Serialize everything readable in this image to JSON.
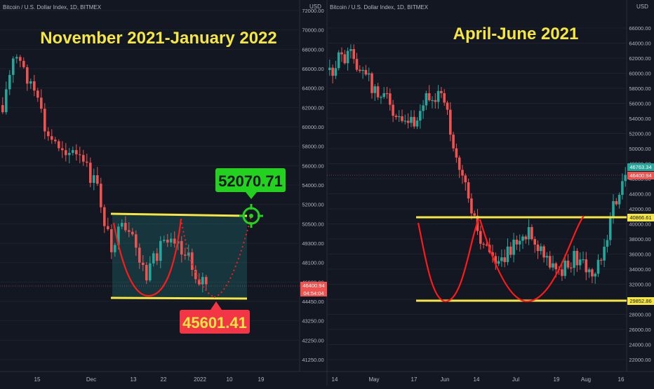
{
  "colors": {
    "background": "#131722",
    "up": "#26a69a",
    "down": "#ef5350",
    "yellow": "#f5e642",
    "pattern": "#ff1a1a",
    "target_green": "#22d21f",
    "target_red": "#f23645",
    "axis_text": "#b2b5be",
    "grid": "#1e222d"
  },
  "left_panel": {
    "header": "Bitcoin / U.S. Dollar Index, 1D, BITMEX",
    "title": "November 2021-January 2022",
    "target_label": "52070.71",
    "bottom_label": "45601.41",
    "y_ticks": [
      "72000.00",
      "70000.00",
      "68000.00",
      "66000.00",
      "64000.00",
      "62000.00",
      "60000.00",
      "58000.00",
      "56000.00",
      "54000.00",
      "52000.00",
      "50500.00",
      "49300.00",
      "48100.00",
      "46900.00",
      "44450.00",
      "43250.00",
      "42250.00",
      "41250.00"
    ],
    "usd_label": "USD",
    "price_tag": "46400.94",
    "countdown_tag": "04:54:04",
    "x_ticks": [
      "15",
      "Dec",
      "13",
      "22",
      "2022",
      "10",
      "19"
    ]
  },
  "right_panel": {
    "header": "Bitcoin / U.S. Dollar Index, 1D, BITMEX",
    "title": "April-June 2021",
    "y_ticks": [
      "66000.00",
      "64000.00",
      "62000.00",
      "60000.00",
      "58000.00",
      "56000.00",
      "54000.00",
      "52000.00",
      "50000.00",
      "48000.00",
      "46000.00",
      "44000.00",
      "42000.00",
      "40000.00",
      "38000.00",
      "36000.00",
      "34000.00",
      "32000.00",
      "30000.00",
      "28000.00",
      "26000.00",
      "24000.00",
      "22000.00"
    ],
    "usd_label": "USD",
    "price_tag_green": "46763.34",
    "price_tag_red": "46400.94",
    "resistance_tag": "40866.61",
    "support_tag": "29852.86",
    "x_ticks": [
      "14",
      "May",
      "17",
      "Jun",
      "14",
      "Jul",
      "19",
      "Aug",
      "16"
    ]
  },
  "chart_data": [
    {
      "type": "candlestick",
      "title": "November 2021-January 2022",
      "ylim": [
        41250,
        72000
      ],
      "levels": {
        "resistance": 52070.71,
        "support": 45601.41
      },
      "x_ticks": [
        "15",
        "Dec",
        "13",
        "22",
        "2022",
        "10",
        "19"
      ]
    },
    {
      "type": "candlestick",
      "title": "April-June 2021",
      "ylim": [
        22000,
        66000
      ],
      "levels": {
        "resistance": 40866.61,
        "support": 29852.86
      },
      "x_ticks": [
        "14",
        "May",
        "17",
        "Jun",
        "14",
        "Jul",
        "19",
        "Aug",
        "16"
      ]
    }
  ]
}
